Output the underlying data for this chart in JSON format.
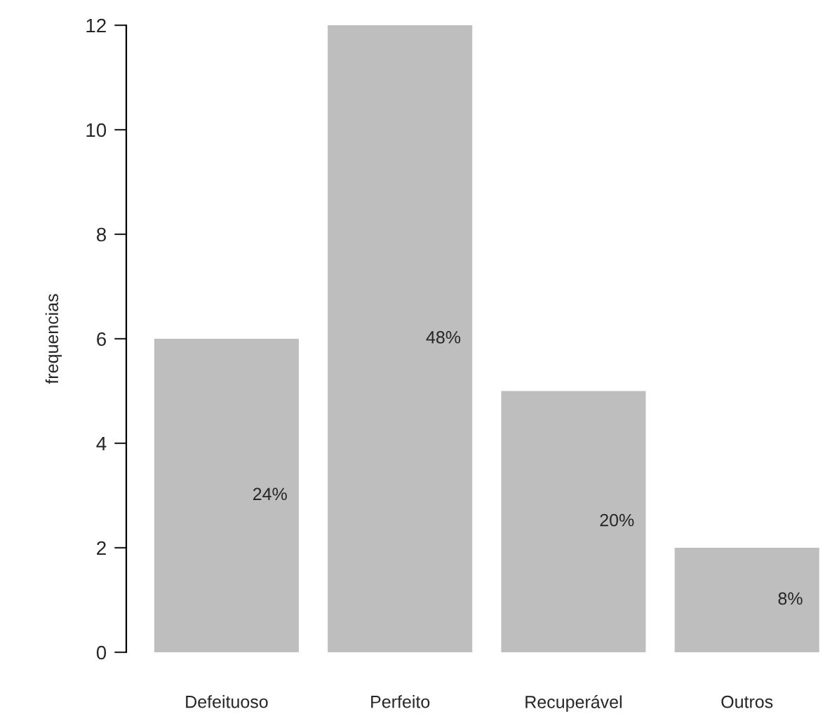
{
  "chart_data": {
    "type": "bar",
    "ylabel": "frequencias",
    "categories": [
      "Defeituoso",
      "Perfeito",
      "Recuperável",
      "Outros"
    ],
    "values": [
      6,
      12,
      5,
      2
    ],
    "annotations": [
      "24%",
      "48%",
      "20%",
      "8%"
    ],
    "color": "#bebebe",
    "ylim": [
      0,
      12
    ],
    "yticks": [
      0,
      2,
      4,
      6,
      8,
      10,
      12
    ],
    "grid": false,
    "legend": false
  }
}
